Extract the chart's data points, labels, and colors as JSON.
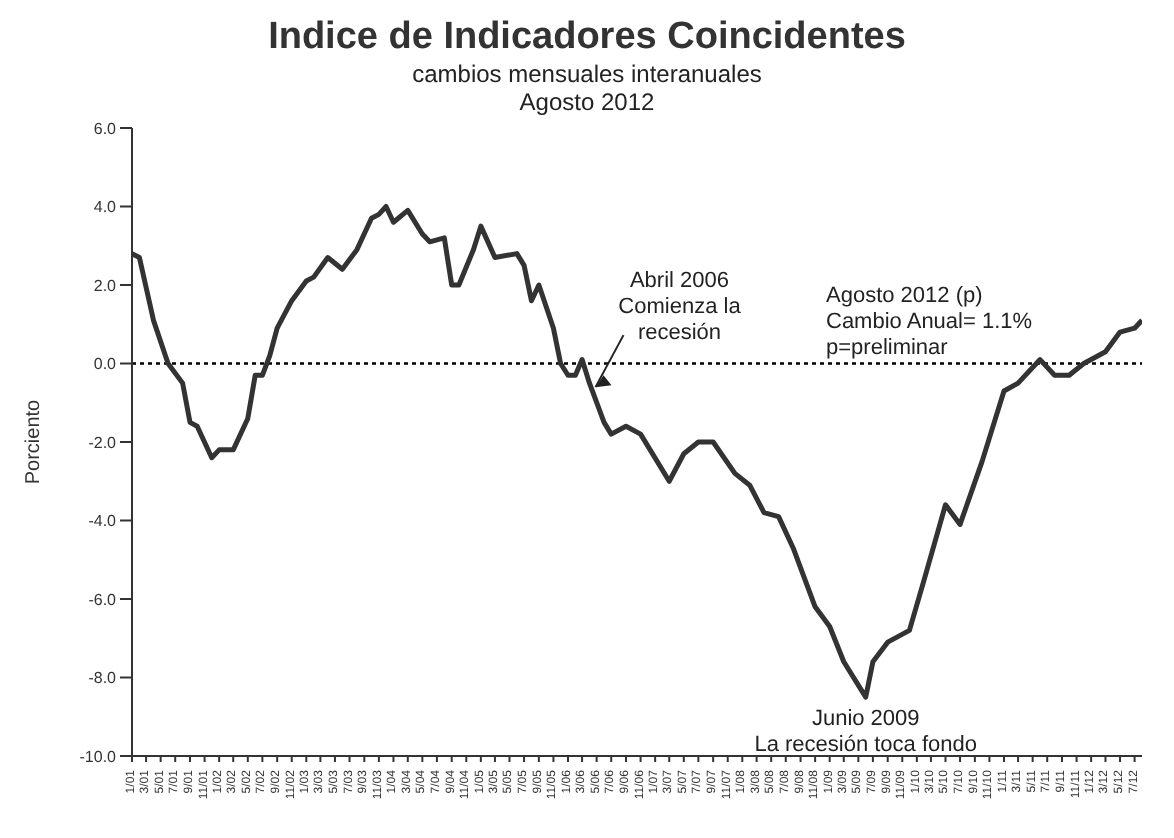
{
  "chart_data": {
    "type": "line",
    "title": "Indice de Indicadores Coincidentes",
    "subtitle": "cambios mensuales interanuales\nAgosto 2012",
    "ylabel": "Porciento",
    "x": [
      "2001-01",
      "2001-02",
      "2001-04",
      "2001-06",
      "2001-08",
      "2001-09",
      "2001-10",
      "2001-12",
      "2002-01",
      "2002-03",
      "2002-05",
      "2002-06",
      "2002-07",
      "2002-08",
      "2002-09",
      "2002-11",
      "2003-01",
      "2003-02",
      "2003-04",
      "2003-06",
      "2003-08",
      "2003-10",
      "2003-11",
      "2003-12",
      "2004-01",
      "2004-03",
      "2004-05",
      "2004-06",
      "2004-08",
      "2004-09",
      "2004-10",
      "2004-12",
      "2005-01",
      "2005-03",
      "2005-06",
      "2005-07",
      "2005-08",
      "2005-09",
      "2005-11",
      "2005-12",
      "2006-01",
      "2006-02",
      "2006-03",
      "2006-04",
      "2006-06",
      "2006-07",
      "2006-09",
      "2006-11",
      "2007-03",
      "2007-05",
      "2007-07",
      "2007-09",
      "2007-12",
      "2008-02",
      "2008-04",
      "2008-06",
      "2008-08",
      "2008-11",
      "2009-01",
      "2009-03",
      "2009-06",
      "2009-07",
      "2009-09",
      "2009-12",
      "2010-02",
      "2010-05",
      "2010-07",
      "2010-10",
      "2011-01",
      "2011-03",
      "2011-06",
      "2011-08",
      "2011-10",
      "2011-12",
      "2012-03",
      "2012-05",
      "2012-07",
      "2012-08"
    ],
    "series": [
      {
        "color": "#333333",
        "values": [
          2.8,
          2.7,
          1.1,
          0.0,
          -0.5,
          -1.5,
          -1.6,
          -2.4,
          -2.2,
          -2.2,
          -1.4,
          -0.3,
          -0.3,
          0.2,
          0.9,
          1.6,
          2.1,
          2.2,
          2.7,
          2.4,
          2.9,
          3.7,
          3.8,
          4.0,
          3.6,
          3.9,
          3.3,
          3.1,
          3.2,
          2.0,
          2.0,
          2.9,
          3.5,
          2.7,
          2.8,
          2.5,
          1.6,
          2.0,
          0.9,
          0.0,
          -0.3,
          -0.3,
          0.1,
          -0.5,
          -1.5,
          -1.8,
          -1.6,
          -1.8,
          -3.0,
          -2.3,
          -2.0,
          -2.0,
          -2.8,
          -3.1,
          -3.8,
          -3.9,
          -4.7,
          -6.2,
          -6.7,
          -7.6,
          -8.5,
          -7.6,
          -7.1,
          -6.8,
          -5.5,
          -3.6,
          -4.1,
          -2.5,
          -0.7,
          -0.5,
          0.1,
          -0.3,
          -0.3,
          0.0,
          0.3,
          0.8,
          0.9,
          1.1
        ]
      }
    ],
    "xlim": [
      "2001-01",
      "2012-08"
    ],
    "xticks": [
      {
        "value": "2001-01",
        "label": "1/01"
      },
      {
        "value": "2001-03",
        "label": "3/01"
      },
      {
        "value": "2001-05",
        "label": "5/01"
      },
      {
        "value": "2001-07",
        "label": "7/01"
      },
      {
        "value": "2001-09",
        "label": "9/01"
      },
      {
        "value": "2001-11",
        "label": "11/01"
      },
      {
        "value": "2002-01",
        "label": "1/02"
      },
      {
        "value": "2002-03",
        "label": "3/02"
      },
      {
        "value": "2002-05",
        "label": "5/02"
      },
      {
        "value": "2002-07",
        "label": "7/02"
      },
      {
        "value": "2002-09",
        "label": "9/02"
      },
      {
        "value": "2002-11",
        "label": "11/02"
      },
      {
        "value": "2003-01",
        "label": "1/03"
      },
      {
        "value": "2003-03",
        "label": "3/03"
      },
      {
        "value": "2003-05",
        "label": "5/03"
      },
      {
        "value": "2003-07",
        "label": "7/03"
      },
      {
        "value": "2003-09",
        "label": "9/03"
      },
      {
        "value": "2003-11",
        "label": "11/03"
      },
      {
        "value": "2004-01",
        "label": "1/04"
      },
      {
        "value": "2004-03",
        "label": "3/04"
      },
      {
        "value": "2004-05",
        "label": "5/04"
      },
      {
        "value": "2004-07",
        "label": "7/04"
      },
      {
        "value": "2004-09",
        "label": "9/04"
      },
      {
        "value": "2004-11",
        "label": "11/04"
      },
      {
        "value": "2005-01",
        "label": "1/05"
      },
      {
        "value": "2005-03",
        "label": "3/05"
      },
      {
        "value": "2005-05",
        "label": "5/05"
      },
      {
        "value": "2005-07",
        "label": "7/05"
      },
      {
        "value": "2005-09",
        "label": "9/05"
      },
      {
        "value": "2005-11",
        "label": "11/05"
      },
      {
        "value": "2006-01",
        "label": "1/06"
      },
      {
        "value": "2006-03",
        "label": "3/06"
      },
      {
        "value": "2006-05",
        "label": "5/06"
      },
      {
        "value": "2006-07",
        "label": "7/06"
      },
      {
        "value": "2006-09",
        "label": "9/06"
      },
      {
        "value": "2006-11",
        "label": "11/06"
      },
      {
        "value": "2007-01",
        "label": "1/07"
      },
      {
        "value": "2007-03",
        "label": "3/07"
      },
      {
        "value": "2007-05",
        "label": "5/07"
      },
      {
        "value": "2007-07",
        "label": "7/07"
      },
      {
        "value": "2007-09",
        "label": "9/07"
      },
      {
        "value": "2007-11",
        "label": "11/07"
      },
      {
        "value": "2008-01",
        "label": "1/08"
      },
      {
        "value": "2008-03",
        "label": "3/08"
      },
      {
        "value": "2008-05",
        "label": "5/08"
      },
      {
        "value": "2008-07",
        "label": "7/08"
      },
      {
        "value": "2008-09",
        "label": "9/08"
      },
      {
        "value": "2008-11",
        "label": "11/08"
      },
      {
        "value": "2009-01",
        "label": "1/09"
      },
      {
        "value": "2009-03",
        "label": "3/09"
      },
      {
        "value": "2009-05",
        "label": "5/09"
      },
      {
        "value": "2009-07",
        "label": "7/09"
      },
      {
        "value": "2009-09",
        "label": "9/09"
      },
      {
        "value": "2009-11",
        "label": "11/09"
      },
      {
        "value": "2010-01",
        "label": "1/10"
      },
      {
        "value": "2010-03",
        "label": "3/10"
      },
      {
        "value": "2010-05",
        "label": "5/10"
      },
      {
        "value": "2010-07",
        "label": "7/10"
      },
      {
        "value": "2010-09",
        "label": "9/10"
      },
      {
        "value": "2010-11",
        "label": "11/10"
      },
      {
        "value": "2011-01",
        "label": "1/11"
      },
      {
        "value": "2011-03",
        "label": "3/11"
      },
      {
        "value": "2011-05",
        "label": "5/11"
      },
      {
        "value": "2011-07",
        "label": "7/11"
      },
      {
        "value": "2011-09",
        "label": "9/11"
      },
      {
        "value": "2011-11",
        "label": "11/11"
      },
      {
        "value": "2012-01",
        "label": "1/12"
      },
      {
        "value": "2012-03",
        "label": "3/12"
      },
      {
        "value": "2012-05",
        "label": "5/12"
      },
      {
        "value": "2012-07",
        "label": "7/12"
      }
    ],
    "ylim": [
      -10,
      6
    ],
    "yticks": [
      {
        "value": 6,
        "label": "6.0"
      },
      {
        "value": 4,
        "label": "4.0"
      },
      {
        "value": 2,
        "label": "2.0"
      },
      {
        "value": 0,
        "label": "0.0"
      },
      {
        "value": -2,
        "label": "-2.0"
      },
      {
        "value": -4,
        "label": "-4.0"
      },
      {
        "value": -6,
        "label": "-6.0"
      },
      {
        "value": -8,
        "label": "-8.0"
      },
      {
        "value": -10,
        "label": "-10.0"
      }
    ],
    "ref_lines": [
      {
        "axis": "y",
        "value": 0,
        "color": "#000000",
        "line_style": "dotted"
      }
    ],
    "annotations": [
      {
        "text": "Abril 2006\nComienza la\nrecesión",
        "x": "2006-04",
        "y": -0.5
      },
      {
        "text": "Junio 2009\nLa recesión toca fondo",
        "x": "2009-06",
        "y": -8.5
      },
      "Agosto 2012 (p)\nCambio Anual= 1.1%\np=preliminar"
    ],
    "marker": "none",
    "line_style": "solid"
  }
}
